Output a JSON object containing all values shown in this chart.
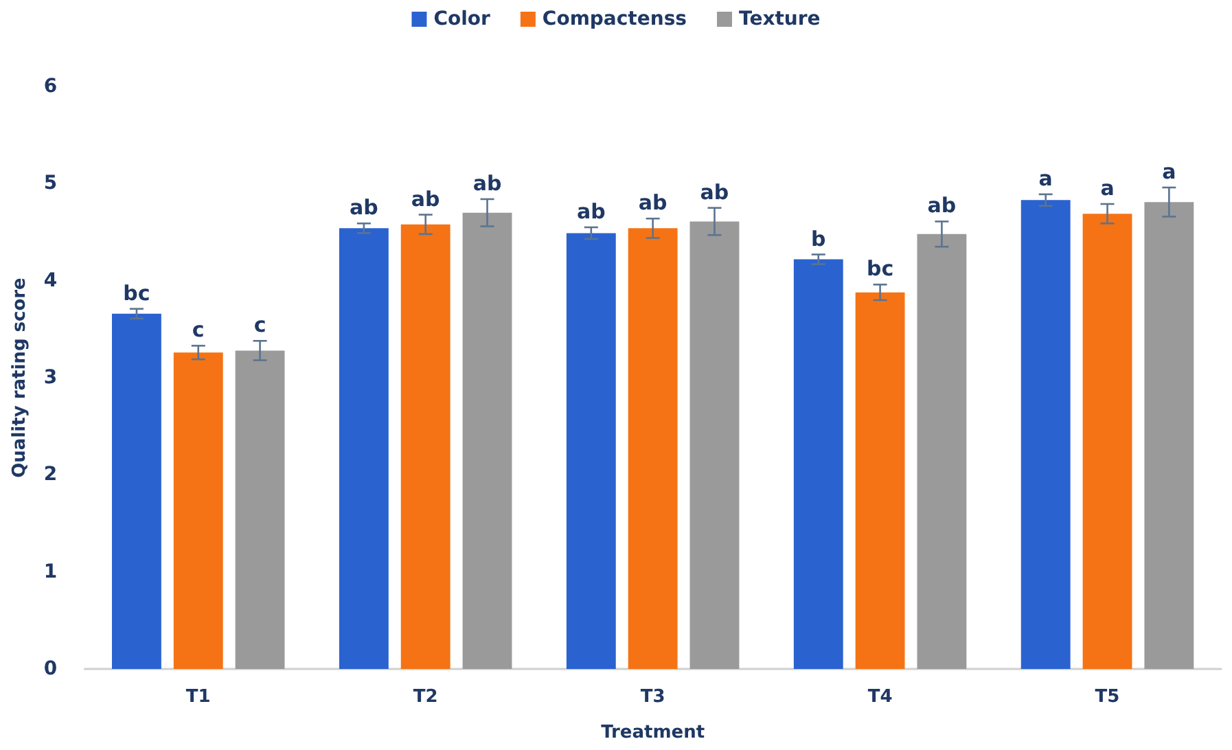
{
  "chart_data": {
    "type": "bar",
    "xlabel": "Treatment",
    "ylabel": "Quality rating score",
    "categories": [
      "T1",
      "T2",
      "T3",
      "T4",
      "T5"
    ],
    "series": [
      {
        "name": "Color",
        "color": "#2a62d0",
        "values": [
          3.66,
          4.54,
          4.49,
          4.22,
          4.83
        ],
        "errors": [
          0.05,
          0.05,
          0.06,
          0.05,
          0.06
        ],
        "value_labels": [
          "bc",
          "ab",
          "ab",
          "b",
          "a"
        ]
      },
      {
        "name": "Compactenss",
        "color": "#f57314",
        "values": [
          3.26,
          4.58,
          4.54,
          3.88,
          4.69
        ],
        "errors": [
          0.07,
          0.1,
          0.1,
          0.08,
          0.1
        ],
        "value_labels": [
          "c",
          "ab",
          "ab",
          "bc",
          "a"
        ]
      },
      {
        "name": "Texture",
        "color": "#9a9a9a",
        "values": [
          3.28,
          4.7,
          4.61,
          4.48,
          4.81
        ],
        "errors": [
          0.1,
          0.14,
          0.14,
          0.13,
          0.15
        ],
        "value_labels": [
          "c",
          "ab",
          "ab",
          "ab",
          "a"
        ]
      }
    ],
    "ylim": [
      0,
      6
    ],
    "yticks": [
      0,
      1,
      2,
      3,
      4,
      5,
      6
    ],
    "grid": false,
    "legend": "top"
  }
}
